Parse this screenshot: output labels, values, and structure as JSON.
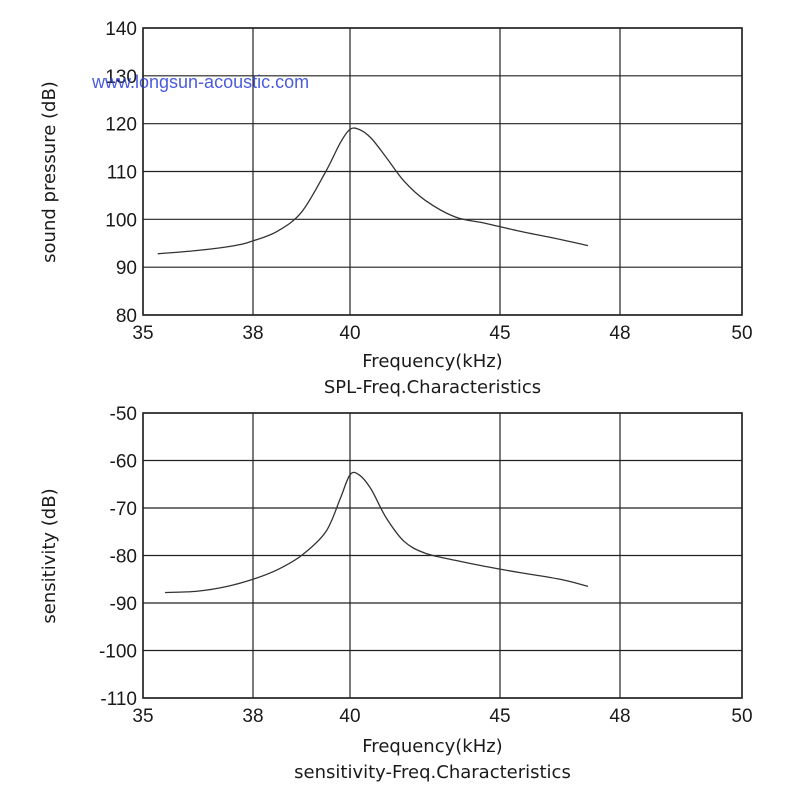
{
  "watermark": "www.longsun-acoustic.com",
  "chart_data": [
    {
      "type": "line",
      "xlabel": "Frequency(kHz)",
      "ylabel": "sound pressure (dB)",
      "caption": "SPL-Freq.Characteristics",
      "x_ticks": [
        "35",
        "38",
        "40",
        "45",
        "48",
        "50"
      ],
      "y_ticks": [
        "140",
        "130",
        "120",
        "110",
        "100",
        "90",
        "80"
      ],
      "ylim": [
        80,
        140
      ],
      "grid": true,
      "series": [
        {
          "x": [
            "35.4",
            "36.5",
            "37.5",
            "38.0",
            "38.5",
            "39.0",
            "39.5",
            "39.8",
            "40.0",
            "40.3",
            "40.7",
            "41.2",
            "41.8",
            "42.5",
            "43.5",
            "44.5",
            "45.5",
            "46.5",
            "47.2"
          ],
          "values": [
            92.8,
            93.5,
            94.5,
            95.5,
            97.5,
            101.5,
            110,
            116,
            118.8,
            118.8,
            117,
            113,
            108,
            104,
            100.5,
            99.2,
            97.5,
            95.8,
            94.5
          ]
        }
      ]
    },
    {
      "type": "line",
      "xlabel": "Frequency(kHz)",
      "ylabel": "sensitivity (dB)",
      "caption": "sensitivity-Freq.Characteristics",
      "x_ticks": [
        "35",
        "38",
        "40",
        "45",
        "48",
        "50"
      ],
      "y_ticks": [
        "-50",
        "-60",
        "-70",
        "-80",
        "-90",
        "-100",
        "-110"
      ],
      "ylim": [
        -110,
        -50
      ],
      "grid": true,
      "series": [
        {
          "x": [
            "35.6",
            "36.5",
            "37.3",
            "38.0",
            "38.5",
            "39.0",
            "39.5",
            "39.8",
            "40.0",
            "40.3",
            "40.7",
            "41.2",
            "41.8",
            "42.5",
            "43.5",
            "44.5",
            "45.5",
            "46.5",
            "47.2"
          ],
          "values": [
            -87.8,
            -87.5,
            -86.5,
            -85,
            -83,
            -80,
            -75,
            -68,
            -63,
            -63,
            -66,
            -72,
            -77,
            -79.5,
            -81,
            -82.3,
            -83.6,
            -85,
            -86.5
          ]
        }
      ]
    }
  ]
}
